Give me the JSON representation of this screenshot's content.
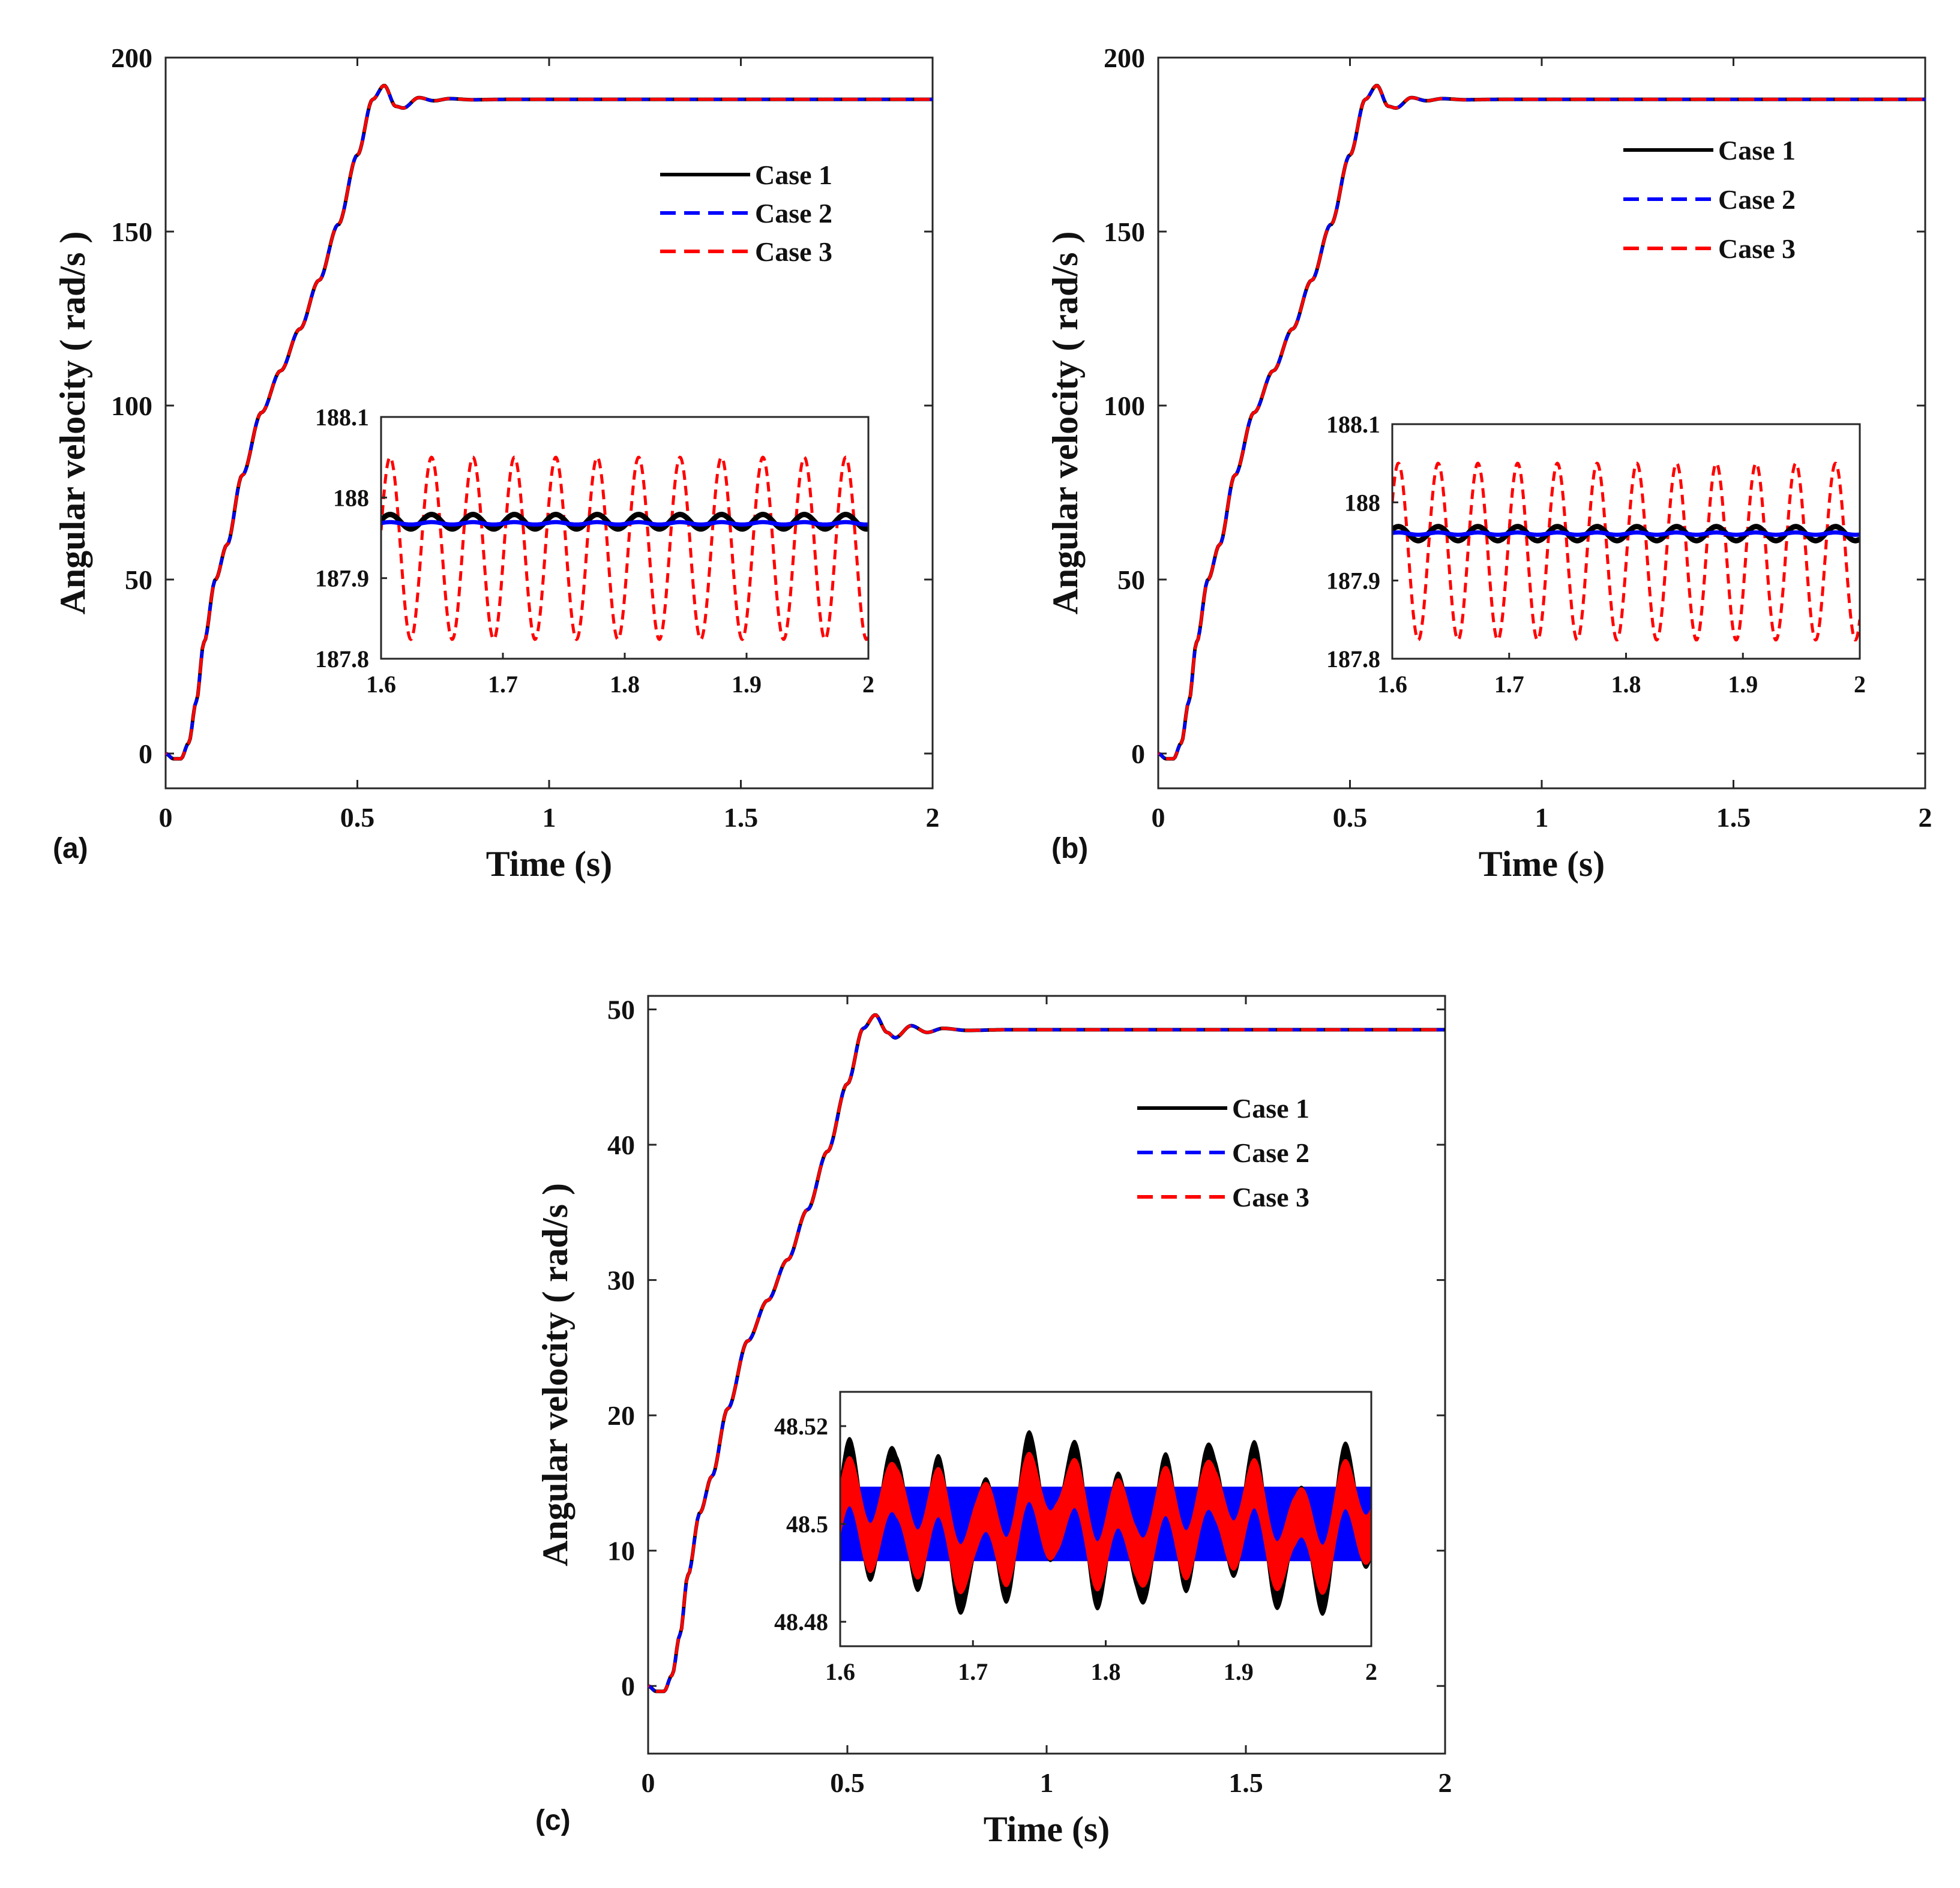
{
  "colors": {
    "case1": "#000000",
    "case2": "#0000ff",
    "case3": "#ff0000",
    "axis": "#262626"
  },
  "chart_data": [
    {
      "type": "line",
      "panel_label": "(a)",
      "xlabel": "Time (s)",
      "ylabel": "Angular velocity ( rad/s )",
      "xlim": [
        0,
        2
      ],
      "ylim": [
        -10,
        200
      ],
      "xticks": [
        0,
        0.5,
        1,
        1.5,
        2
      ],
      "xtick_labels": [
        "0",
        "0.5",
        "1",
        "1.5",
        "2"
      ],
      "yticks": [
        0,
        50,
        100,
        150,
        200
      ],
      "ytick_labels": [
        "0",
        "50",
        "100",
        "150",
        "200"
      ],
      "legend": {
        "position": "top-right",
        "entries": [
          "Case 1",
          "Case 2",
          "Case 3"
        ]
      },
      "series": [
        {
          "name": "Case 1",
          "style": "solid",
          "color_key": "case1",
          "x": [
            0,
            0.02,
            0.04,
            0.06,
            0.08,
            0.1,
            0.13,
            0.16,
            0.2,
            0.25,
            0.3,
            0.35,
            0.4,
            0.45,
            0.5,
            0.54,
            0.57,
            0.6,
            0.62,
            0.66,
            0.7,
            0.74,
            0.8,
            0.9,
            2.0
          ],
          "y": [
            0,
            -1.5,
            -1.5,
            3,
            15,
            32,
            50,
            60,
            80,
            98,
            110,
            122,
            136,
            152,
            172,
            188,
            192,
            186,
            185.5,
            188.5,
            187.6,
            188.2,
            187.9,
            188,
            188
          ]
        },
        {
          "name": "Case 2",
          "style": "dashed",
          "color_key": "case2",
          "same_as": "Case 1"
        },
        {
          "name": "Case 3",
          "style": "dashed",
          "color_key": "case3",
          "same_as": "Case 1"
        }
      ],
      "inset": {
        "xlim": [
          1.6,
          2
        ],
        "ylim": [
          187.8,
          188.1
        ],
        "xticks": [
          1.6,
          1.7,
          1.8,
          1.9,
          2
        ],
        "xtick_labels": [
          "1.6",
          "1.7",
          "1.8",
          "1.9",
          "2"
        ],
        "yticks": [
          187.8,
          187.9,
          188,
          188.1
        ],
        "ytick_labels": [
          "187.8",
          "187.9",
          "188",
          "188.1"
        ],
        "series": [
          {
            "name": "Case 1",
            "mean": 187.97,
            "amplitude": 0.009,
            "period": 0.034,
            "phase": 0.2
          },
          {
            "name": "Case 2",
            "mean": 187.968,
            "amplitude": 0.0015,
            "period": 0.034,
            "phase": 0.2
          },
          {
            "name": "Case 3",
            "mean": 187.937,
            "amplitude": 0.113,
            "period": 0.034,
            "phase": 0.2
          }
        ]
      }
    },
    {
      "type": "line",
      "panel_label": "(b)",
      "xlabel": "Time (s)",
      "ylabel": "Angular velocity ( rad/s )",
      "xlim": [
        0,
        2
      ],
      "ylim": [
        -10,
        200
      ],
      "xticks": [
        0,
        0.5,
        1,
        1.5,
        2
      ],
      "xtick_labels": [
        "0",
        "0.5",
        "1",
        "1.5",
        "2"
      ],
      "yticks": [
        0,
        50,
        100,
        150,
        200
      ],
      "ytick_labels": [
        "0",
        "50",
        "100",
        "150",
        "200"
      ],
      "legend": {
        "position": "top-right",
        "entries": [
          "Case 1",
          "Case 2",
          "Case 3"
        ]
      },
      "series": [
        {
          "name": "Case 1",
          "style": "solid",
          "color_key": "case1",
          "x": [
            0,
            0.02,
            0.04,
            0.06,
            0.08,
            0.1,
            0.13,
            0.16,
            0.2,
            0.25,
            0.3,
            0.35,
            0.4,
            0.45,
            0.5,
            0.54,
            0.57,
            0.6,
            0.62,
            0.66,
            0.7,
            0.74,
            0.8,
            0.9,
            2.0
          ],
          "y": [
            0,
            -1.5,
            -1.5,
            3,
            15,
            32,
            50,
            60,
            80,
            98,
            110,
            122,
            136,
            152,
            172,
            188,
            192,
            186,
            185.5,
            188.5,
            187.6,
            188.2,
            187.9,
            188,
            188
          ]
        },
        {
          "name": "Case 2",
          "style": "dashed",
          "color_key": "case2",
          "same_as": "Case 1"
        },
        {
          "name": "Case 3",
          "style": "dashed",
          "color_key": "case3",
          "same_as": "Case 1"
        }
      ],
      "inset": {
        "xlim": [
          1.6,
          2
        ],
        "ylim": [
          187.8,
          188.1
        ],
        "xticks": [
          1.6,
          1.7,
          1.8,
          1.9,
          2
        ],
        "xtick_labels": [
          "1.6",
          "1.7",
          "1.8",
          "1.9",
          "2"
        ],
        "yticks": [
          187.8,
          187.9,
          188,
          188.1
        ],
        "ytick_labels": [
          "187.8",
          "187.9",
          "188",
          "188.1"
        ],
        "series": [
          {
            "name": "Case 1",
            "mean": 187.96,
            "amplitude": 0.009,
            "period": 0.034,
            "phase": 0.6
          },
          {
            "name": "Case 2",
            "mean": 187.96,
            "amplitude": 0.0015,
            "period": 0.034,
            "phase": 0.6
          },
          {
            "name": "Case 3",
            "mean": 187.937,
            "amplitude": 0.113,
            "period": 0.034,
            "phase": 0.6
          }
        ]
      }
    },
    {
      "type": "line",
      "panel_label": "(c)",
      "xlabel": "Time (s)",
      "ylabel": "Angular velocity ( rad/s )",
      "xlim": [
        0,
        2
      ],
      "ylim": [
        -5,
        51
      ],
      "xticks": [
        0,
        0.5,
        1,
        1.5,
        2
      ],
      "xtick_labels": [
        "0",
        "0.5",
        "1",
        "1.5",
        "2"
      ],
      "yticks": [
        0,
        10,
        20,
        30,
        40,
        50
      ],
      "ytick_labels": [
        "0",
        "10",
        "20",
        "30",
        "40",
        "50"
      ],
      "legend": {
        "position": "top-right",
        "entries": [
          "Case 1",
          "Case 2",
          "Case 3"
        ]
      },
      "series": [
        {
          "name": "Case 1",
          "style": "solid",
          "color_key": "case1",
          "x": [
            0,
            0.02,
            0.04,
            0.06,
            0.08,
            0.1,
            0.13,
            0.16,
            0.2,
            0.25,
            0.3,
            0.35,
            0.4,
            0.45,
            0.5,
            0.54,
            0.57,
            0.6,
            0.62,
            0.66,
            0.7,
            0.74,
            0.8,
            0.9,
            2.0
          ],
          "y": [
            0,
            -0.4,
            -0.4,
            0.8,
            3.8,
            8.2,
            12.8,
            15.5,
            20.5,
            25.5,
            28.5,
            31.5,
            35.2,
            39.5,
            44.5,
            48.6,
            49.6,
            48.3,
            47.9,
            48.8,
            48.3,
            48.6,
            48.45,
            48.5,
            48.5
          ]
        },
        {
          "name": "Case 2",
          "style": "dashed",
          "color_key": "case2",
          "same_as": "Case 1"
        },
        {
          "name": "Case 3",
          "style": "dashed",
          "color_key": "case3",
          "same_as": "Case 1"
        }
      ],
      "inset": {
        "xlim": [
          1.6,
          2
        ],
        "ylim": [
          48.475,
          48.527
        ],
        "xticks": [
          1.6,
          1.7,
          1.8,
          1.9,
          2
        ],
        "xtick_labels": [
          "1.6",
          "1.7",
          "1.8",
          "1.9",
          "2"
        ],
        "yticks": [
          48.48,
          48.5,
          48.52
        ],
        "ytick_labels": [
          "48.48",
          "48.5",
          "48.52"
        ],
        "series": [
          {
            "name": "Case 2",
            "mean": 48.5,
            "amplitude": 0.0,
            "period": 0.034,
            "band": 0.0075
          },
          {
            "name": "Case 1",
            "mean": 48.5,
            "amplitude": 0.0125,
            "period": 0.034,
            "envelope_period": 0.12,
            "band": 0.004
          },
          {
            "name": "Case 3",
            "mean": 48.5,
            "amplitude": 0.008,
            "period": 0.034,
            "envelope_period": 0.12,
            "band": 0.005
          }
        ]
      }
    }
  ]
}
